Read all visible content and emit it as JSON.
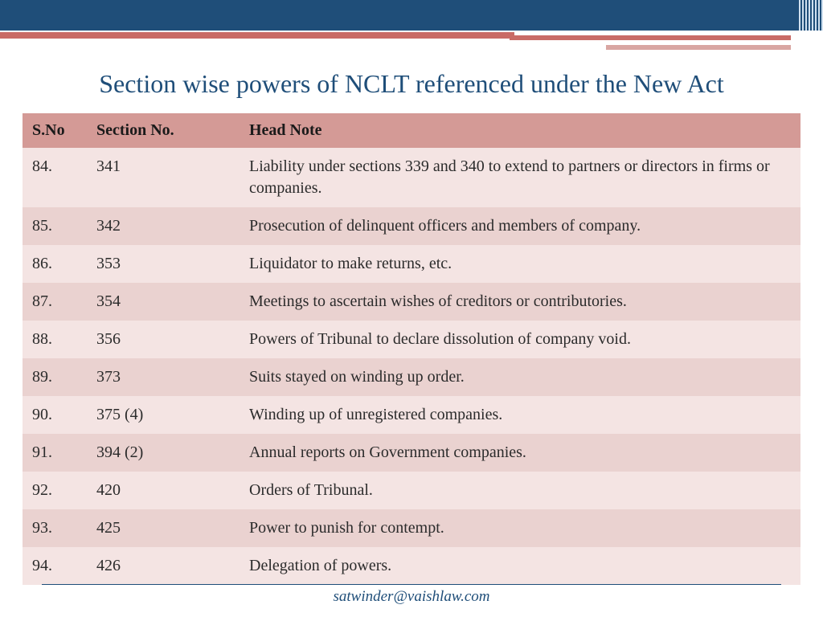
{
  "colors": {
    "band": "#1f4e79",
    "accent": "#c96b66",
    "accent_light": "#d9a6a2",
    "header_bg": "#d49a96",
    "row_odd": "#f4e4e3",
    "row_even": "#ead2d0",
    "title": "#1f4e79",
    "text": "#2b2b2b"
  },
  "title": "Section wise powers of NCLT referenced under the New Act",
  "table": {
    "columns": [
      "S.No",
      "Section No.",
      "Head Note"
    ],
    "rows": [
      [
        "84.",
        "341",
        "Liability under sections 339 and 340 to extend to partners or directors in firms or companies."
      ],
      [
        "85.",
        "342",
        "Prosecution of delinquent officers and members of company."
      ],
      [
        "86.",
        "353",
        "Liquidator to make returns, etc."
      ],
      [
        "87.",
        "354",
        "Meetings to ascertain wishes of creditors or contributories."
      ],
      [
        "88.",
        "356",
        "Powers of Tribunal to declare dissolution of company void."
      ],
      [
        "89.",
        "373",
        "Suits stayed on winding up order."
      ],
      [
        "90.",
        "375 (4)",
        "Winding up of unregistered companies."
      ],
      [
        "91.",
        "394 (2)",
        "Annual reports on Government companies."
      ],
      [
        "92.",
        "420",
        "Orders of Tribunal."
      ],
      [
        "93.",
        "425",
        "Power to punish for contempt."
      ],
      [
        "94.",
        "426",
        "Delegation of powers."
      ]
    ]
  },
  "footer_email": "satwinder@vaishlaw.com"
}
